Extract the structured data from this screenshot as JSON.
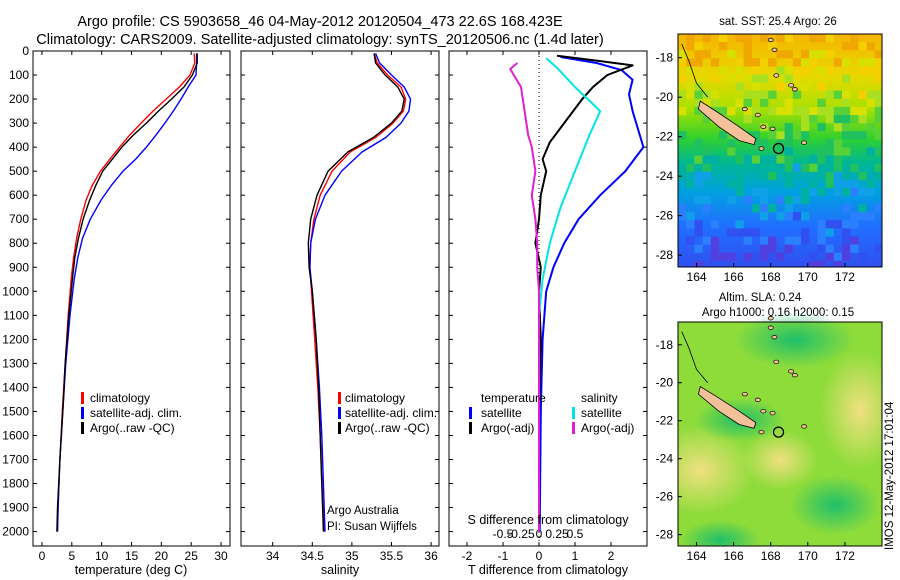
{
  "header": {
    "line1": "Argo profile: CS 5903658_46 04-May-2012 20120504_473 22.6S 168.423E",
    "line2": "Climatology: CARS2009. Satellite-adjusted climatology: synTS_20120506.nc (1.4d later)"
  },
  "colors": {
    "climatology": "#ff0000",
    "satellite": "#0000ff",
    "argo": "#000000",
    "sal_satellite": "#00e5e5",
    "sal_argo": "#e020d0",
    "land": "#f4c09a"
  },
  "chart_data": [
    {
      "type": "line",
      "id": "temperature",
      "xlabel": "temperature (deg C)",
      "xlim": [
        -1.5,
        31.5
      ],
      "xticks": [
        0,
        5,
        10,
        15,
        20,
        25,
        30
      ],
      "ylim": [
        0,
        2060
      ],
      "yticks": [
        0,
        100,
        200,
        300,
        400,
        500,
        600,
        700,
        800,
        900,
        1000,
        1100,
        1200,
        1300,
        1400,
        1500,
        1600,
        1700,
        1800,
        1900,
        2000
      ],
      "legend": [
        "climatology",
        "satellite-adj. clim.",
        "Argo(..raw -QC)"
      ],
      "series": [
        {
          "name": "climatology",
          "color": "red",
          "points": [
            [
              25.5,
              10
            ],
            [
              25.6,
              50
            ],
            [
              24.8,
              100
            ],
            [
              23.0,
              150
            ],
            [
              20.8,
              200
            ],
            [
              18.6,
              250
            ],
            [
              16.6,
              300
            ],
            [
              14.7,
              350
            ],
            [
              13.0,
              400
            ],
            [
              11.4,
              450
            ],
            [
              9.8,
              500
            ],
            [
              8.4,
              560
            ],
            [
              7.4,
              620
            ],
            [
              6.5,
              700
            ],
            [
              5.8,
              780
            ],
            [
              5.3,
              860
            ],
            [
              4.9,
              950
            ],
            [
              4.4,
              1100
            ],
            [
              3.9,
              1300
            ],
            [
              3.4,
              1500
            ],
            [
              3.0,
              1700
            ],
            [
              2.7,
              1900
            ],
            [
              2.6,
              2000
            ]
          ]
        },
        {
          "name": "satellite-adj. clim.",
          "color": "blue",
          "points": [
            [
              25.9,
              10
            ],
            [
              25.9,
              50
            ],
            [
              25.8,
              100
            ],
            [
              24.5,
              150
            ],
            [
              23.3,
              200
            ],
            [
              22.0,
              250
            ],
            [
              20.6,
              300
            ],
            [
              19.1,
              350
            ],
            [
              17.5,
              400
            ],
            [
              15.7,
              450
            ],
            [
              13.6,
              500
            ],
            [
              11.6,
              560
            ],
            [
              9.9,
              620
            ],
            [
              8.1,
              700
            ],
            [
              6.8,
              780
            ],
            [
              6.0,
              860
            ],
            [
              5.4,
              950
            ],
            [
              4.7,
              1100
            ],
            [
              4.0,
              1300
            ],
            [
              3.5,
              1500
            ],
            [
              3.0,
              1700
            ],
            [
              2.7,
              1900
            ],
            [
              2.6,
              2000
            ]
          ]
        },
        {
          "name": "Argo(..raw -QC)",
          "color": "black",
          "points": [
            [
              26.0,
              10
            ],
            [
              26.0,
              50
            ],
            [
              25.2,
              100
            ],
            [
              23.8,
              150
            ],
            [
              21.7,
              200
            ],
            [
              19.5,
              250
            ],
            [
              17.5,
              300
            ],
            [
              15.3,
              350
            ],
            [
              13.4,
              400
            ],
            [
              11.8,
              450
            ],
            [
              10.2,
              500
            ],
            [
              9.0,
              560
            ],
            [
              8.0,
              620
            ],
            [
              6.9,
              700
            ],
            [
              6.1,
              780
            ],
            [
              5.5,
              860
            ],
            [
              5.1,
              950
            ],
            [
              4.5,
              1100
            ],
            [
              3.9,
              1300
            ],
            [
              3.5,
              1500
            ],
            [
              3.0,
              1700
            ],
            [
              2.6,
              1900
            ],
            [
              2.5,
              2000
            ]
          ]
        }
      ]
    },
    {
      "type": "line",
      "id": "salinity",
      "xlabel": "salinity",
      "xlim": [
        33.6,
        36.1
      ],
      "xticks": [
        34,
        34.5,
        35,
        35.5,
        36
      ],
      "ylim": [
        0,
        2060
      ],
      "legend": [
        "climatology",
        "satellite-adj. clim.",
        "Argo(..raw -QC)"
      ],
      "annotation": [
        "Argo Australia",
        "PI: Susan Wijffels"
      ],
      "series": [
        {
          "name": "climatology",
          "color": "red",
          "points": [
            [
              35.28,
              10
            ],
            [
              35.32,
              50
            ],
            [
              35.45,
              100
            ],
            [
              35.62,
              150
            ],
            [
              35.68,
              200
            ],
            [
              35.65,
              250
            ],
            [
              35.52,
              300
            ],
            [
              35.3,
              360
            ],
            [
              34.98,
              420
            ],
            [
              34.75,
              500
            ],
            [
              34.6,
              600
            ],
            [
              34.52,
              700
            ],
            [
              34.48,
              800
            ],
            [
              34.47,
              900
            ],
            [
              34.49,
              1000
            ],
            [
              34.53,
              1200
            ],
            [
              34.57,
              1400
            ],
            [
              34.6,
              1600
            ],
            [
              34.62,
              1800
            ],
            [
              34.65,
              2000
            ]
          ]
        },
        {
          "name": "satellite-adj. clim.",
          "color": "blue",
          "points": [
            [
              35.3,
              10
            ],
            [
              35.35,
              50
            ],
            [
              35.5,
              100
            ],
            [
              35.66,
              150
            ],
            [
              35.74,
              200
            ],
            [
              35.72,
              250
            ],
            [
              35.62,
              300
            ],
            [
              35.43,
              360
            ],
            [
              35.13,
              420
            ],
            [
              34.87,
              500
            ],
            [
              34.66,
              600
            ],
            [
              34.54,
              700
            ],
            [
              34.48,
              800
            ],
            [
              34.47,
              900
            ],
            [
              34.5,
              1000
            ],
            [
              34.55,
              1200
            ],
            [
              34.59,
              1400
            ],
            [
              34.62,
              1600
            ],
            [
              34.64,
              1800
            ],
            [
              34.66,
              2000
            ]
          ]
        },
        {
          "name": "Argo(..raw -QC)",
          "color": "black",
          "points": [
            [
              35.28,
              10
            ],
            [
              35.3,
              50
            ],
            [
              35.42,
              100
            ],
            [
              35.58,
              150
            ],
            [
              35.66,
              200
            ],
            [
              35.63,
              250
            ],
            [
              35.5,
              300
            ],
            [
              35.27,
              360
            ],
            [
              34.95,
              420
            ],
            [
              34.7,
              500
            ],
            [
              34.56,
              600
            ],
            [
              34.48,
              700
            ],
            [
              34.45,
              800
            ],
            [
              34.46,
              900
            ],
            [
              34.5,
              1000
            ],
            [
              34.55,
              1200
            ],
            [
              34.58,
              1400
            ],
            [
              34.6,
              1600
            ],
            [
              34.62,
              1800
            ],
            [
              34.64,
              2000
            ]
          ]
        }
      ]
    },
    {
      "type": "line",
      "id": "differences",
      "xlabel": "T difference from climatology",
      "xlabel_top": "S difference from climatology",
      "xlim": [
        -2.5,
        3
      ],
      "xticks": [
        -2,
        -1,
        0,
        1,
        2
      ],
      "xticks_top": [
        -0.5,
        -0.25,
        0,
        0.25,
        0.5
      ],
      "xticks_top_labels": [
        "-0.5",
        "-0.25",
        "0",
        "0.25",
        "0.5"
      ],
      "legend_left_title": "temperature",
      "legend_right_title": "salinity",
      "legend_left": [
        "satellite",
        "Argo(-adj)"
      ],
      "legend_right": [
        "satellite",
        "Argo(-adj)"
      ],
      "series": [
        {
          "name": "temperature satellite",
          "color": "blue",
          "points": [
            [
              0.6,
              25
            ],
            [
              1.6,
              50
            ],
            [
              2.3,
              80
            ],
            [
              2.6,
              120
            ],
            [
              2.5,
              180
            ],
            [
              2.6,
              250
            ],
            [
              2.9,
              400
            ],
            [
              2.4,
              500
            ],
            [
              1.7,
              600
            ],
            [
              1.1,
              700
            ],
            [
              0.7,
              800
            ],
            [
              0.4,
              900
            ],
            [
              0.2,
              1000
            ],
            [
              0.1,
              1200
            ],
            [
              0.05,
              1500
            ],
            [
              0.02,
              2000
            ]
          ]
        },
        {
          "name": "temperature Argo(-adj)",
          "color": "black",
          "points": [
            [
              0.5,
              20
            ],
            [
              1.6,
              40
            ],
            [
              2.6,
              60
            ],
            [
              1.9,
              100
            ],
            [
              1.5,
              150
            ],
            [
              1.2,
              200
            ],
            [
              0.9,
              260
            ],
            [
              0.6,
              320
            ],
            [
              0.3,
              380
            ],
            [
              0.1,
              450
            ],
            [
              0.2,
              500
            ],
            [
              0.05,
              600
            ],
            [
              0.0,
              700
            ],
            [
              -0.1,
              800
            ],
            [
              0.05,
              900
            ],
            [
              0.0,
              1000
            ],
            [
              0.05,
              1200
            ],
            [
              0.0,
              1500
            ],
            [
              0.0,
              2000
            ]
          ]
        },
        {
          "name": "salinity satellite",
          "color": "cyan",
          "points": [
            [
              0.2,
              30
            ],
            [
              0.5,
              70
            ],
            [
              1.0,
              150
            ],
            [
              1.7,
              250
            ],
            [
              1.4,
              350
            ],
            [
              1.0,
              500
            ],
            [
              0.6,
              650
            ],
            [
              0.3,
              800
            ],
            [
              0.1,
              950
            ],
            [
              0.0,
              1100
            ],
            [
              0.0,
              2000
            ]
          ]
        },
        {
          "name": "salinity Argo(-adj)",
          "color": "magenta",
          "points": [
            [
              -0.6,
              50
            ],
            [
              -0.8,
              75
            ],
            [
              -0.5,
              150
            ],
            [
              -0.4,
              250
            ],
            [
              -0.3,
              350
            ],
            [
              -0.2,
              400
            ],
            [
              -0.1,
              500
            ],
            [
              -0.2,
              600
            ],
            [
              -0.1,
              700
            ],
            [
              -0.05,
              800
            ],
            [
              -0.05,
              900
            ],
            [
              0.0,
              1000
            ],
            [
              0.0,
              1500
            ],
            [
              0.0,
              2000
            ]
          ]
        }
      ]
    },
    {
      "type": "heatmap",
      "id": "sst-map",
      "title": "sat. SST: 25.4  Argo: 26",
      "xticks": [
        164,
        166,
        168,
        170,
        172
      ],
      "yticks": [
        -18,
        -20,
        -22,
        -24,
        -26,
        -28
      ],
      "xlim": [
        163,
        174
      ],
      "ylim": [
        -28.6,
        -16.8
      ],
      "argo_position": [
        168.42,
        -22.6
      ]
    },
    {
      "type": "heatmap",
      "id": "sla-map",
      "title": [
        "Altim. SLA: 0.24",
        "Argo h1000: 0.16  h2000: 0.15"
      ],
      "xticks": [
        164,
        166,
        168,
        170,
        172
      ],
      "yticks": [
        -18,
        -20,
        -22,
        -24,
        -26,
        -28
      ],
      "xlim": [
        163,
        174
      ],
      "ylim": [
        -28.6,
        -16.8
      ],
      "argo_position": [
        168.42,
        -22.6
      ]
    }
  ],
  "footer_stamp": "IMOS 12-May-2012 17:01:04"
}
